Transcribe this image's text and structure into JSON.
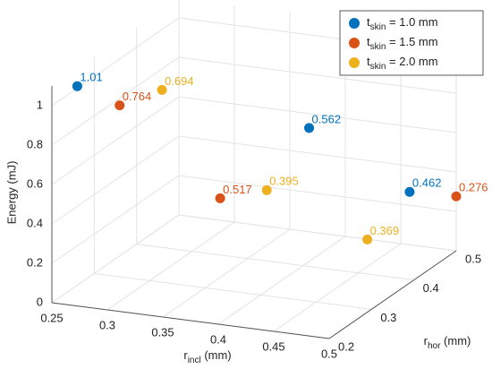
{
  "chart_data": {
    "type": "scatter3d",
    "xlabel": [
      "r",
      "incl",
      " (mm)"
    ],
    "ylabel": [
      "r",
      "hor",
      " (mm)"
    ],
    "zlabel": "Energy (mJ)",
    "xlim": [
      0.25,
      0.5
    ],
    "xticks": [
      0.25,
      0.3,
      0.35,
      0.4,
      0.45,
      0.5
    ],
    "ylim": [
      0.2,
      0.5
    ],
    "yticks": [
      0.2,
      0.3,
      0.4,
      0.5
    ],
    "zlim": [
      0,
      1.1
    ],
    "zticks": [
      0,
      0.2,
      0.4,
      0.6,
      0.8,
      1
    ],
    "grid": true,
    "legend": "upper right",
    "series": [
      {
        "name": [
          "t",
          "skin",
          " = 1.0 mm"
        ],
        "color": "#0072BD",
        "x": [
          0.25,
          0.375,
          0.5
        ],
        "y": [
          0.26,
          0.48,
          0.39
        ],
        "values": [
          1.01,
          0.562,
          0.462
        ]
      },
      {
        "name": [
          "t",
          "skin",
          " = 1.5 mm"
        ],
        "color": "#D95319",
        "x": [
          0.25,
          0.375,
          0.5
        ],
        "y": [
          0.36,
          0.27,
          0.5
        ],
        "values": [
          0.764,
          0.517,
          0.276
        ]
      },
      {
        "name": [
          "t",
          "skin",
          " = 2.0 mm"
        ],
        "color": "#EDB120",
        "x": [
          0.25,
          0.375,
          0.5
        ],
        "y": [
          0.46,
          0.38,
          0.29
        ],
        "values": [
          0.694,
          0.395,
          0.369
        ]
      }
    ]
  }
}
